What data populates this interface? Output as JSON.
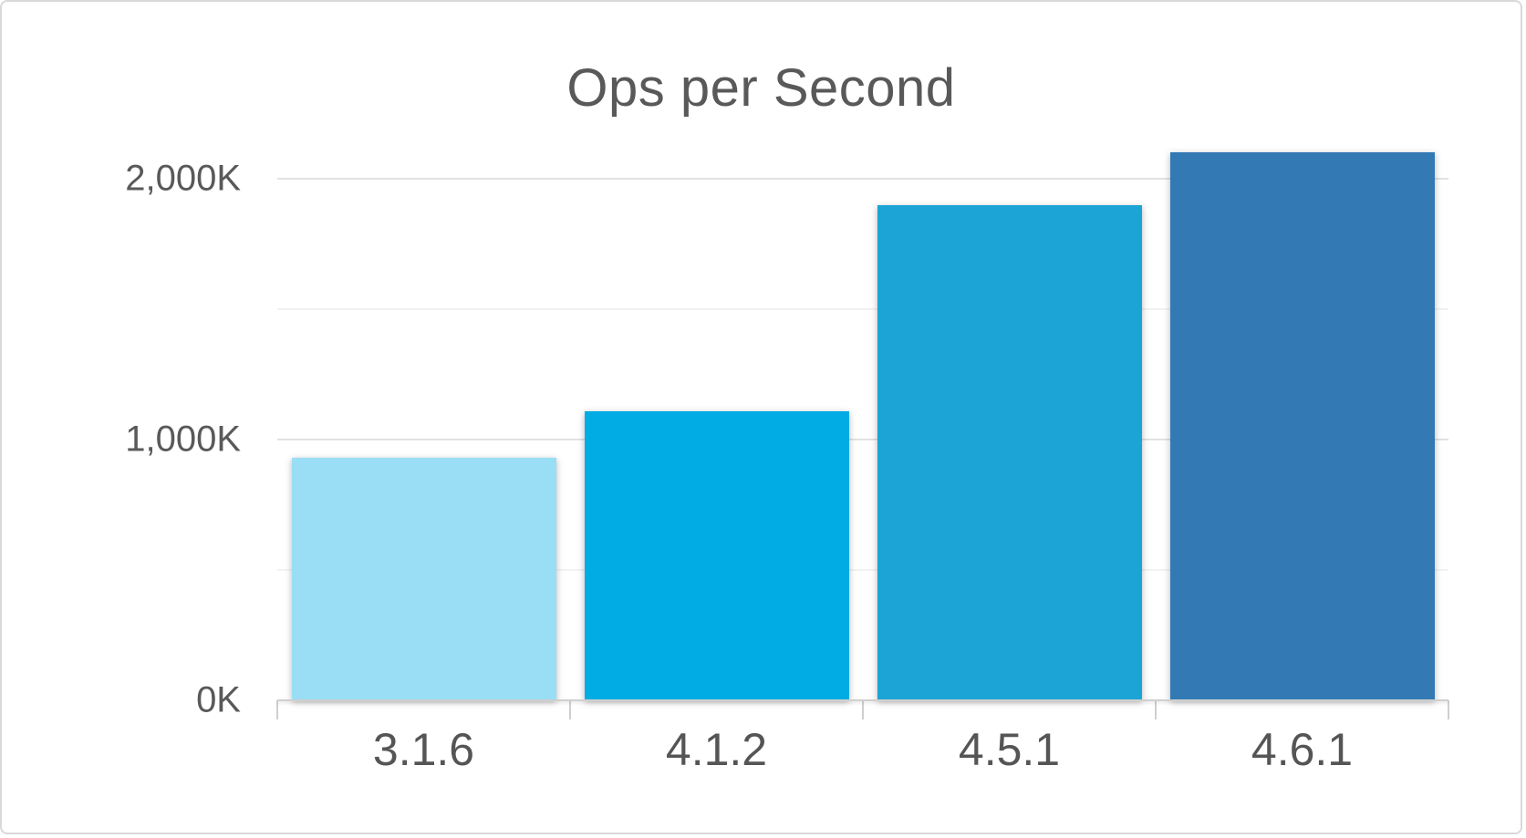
{
  "chart_data": {
    "type": "bar",
    "title": "Ops per Second",
    "categories": [
      "3.1.6",
      "4.1.2",
      "4.5.1",
      "4.6.1"
    ],
    "values_k": [
      930,
      1110,
      1900,
      2100
    ],
    "series": [
      {
        "name": "Ops per Second",
        "values_k": [
          930,
          1110,
          1900,
          2100
        ]
      }
    ],
    "unit": "K (thousands of operations per second)",
    "xlabel": "",
    "ylabel": "",
    "ylim_k": [
      0,
      2189
    ],
    "yticks": [
      {
        "value_k": 0,
        "label": "0K"
      },
      {
        "value_k": 1000,
        "label": "1,000K"
      },
      {
        "value_k": 2000,
        "label": "2,000K"
      }
    ],
    "minor_gridlines_k": [
      500,
      1500
    ],
    "bar_colors": [
      "#9ADEF5",
      "#00ACE3",
      "#1BA4D5",
      "#3379B4"
    ],
    "grid": "on",
    "legend": "none",
    "colors": {
      "title_text": "#595959",
      "axis_text": "#595959",
      "major_gridline": "#e2e2e2",
      "minor_gridline": "#f2f2f2",
      "axis_line": "#cfcfcf",
      "frame_border": "#d9d9d9",
      "background": "#ffffff"
    }
  }
}
